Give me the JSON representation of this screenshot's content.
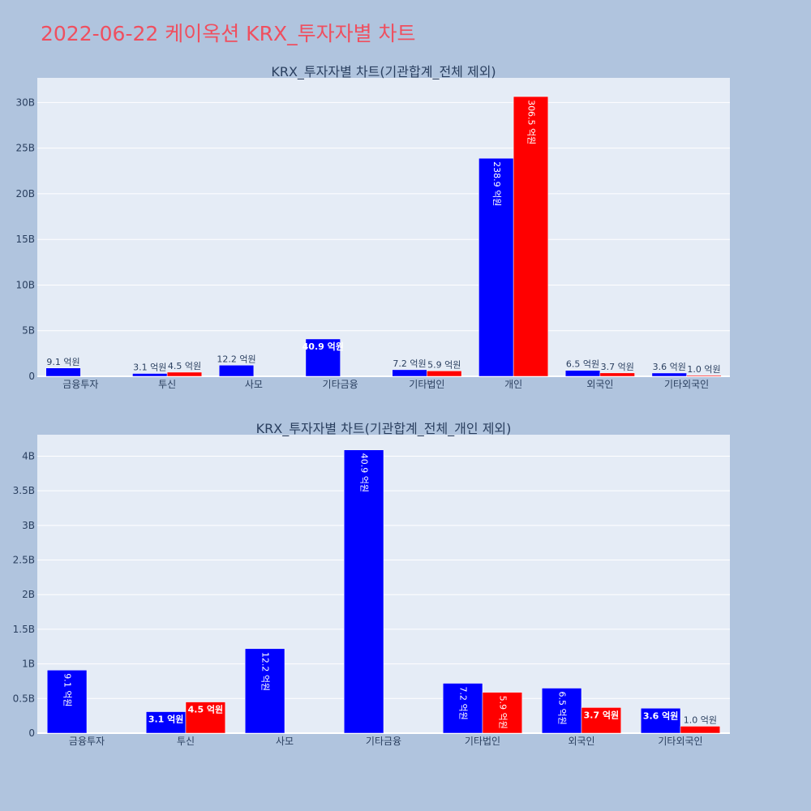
{
  "page": {
    "title": "2022-06-22 케이옥션 KRX_투자자별 차트"
  },
  "colors": {
    "background": "#b0c4de",
    "plot_bg": "#e5ecf6",
    "buy": "#0000ff",
    "sell": "#ff0000",
    "title": "#ef4f5f"
  },
  "chart_data": [
    {
      "type": "bar",
      "title": "KRX_투자자별 차트(기관합계_전체 제외)",
      "categories": [
        "금융투자",
        "투신",
        "사모",
        "기타금융",
        "기타법인",
        "개인",
        "외국인",
        "기타외국인"
      ],
      "series": [
        {
          "color": "#0000ff",
          "values": [
            910000000,
            310000000,
            1220000000,
            4090000000,
            720000000,
            23890000000,
            650000000,
            360000000
          ],
          "labels": [
            "9.1 억원",
            "3.1 억원",
            "12.2 억원",
            "40.9 억원",
            "7.2 억원",
            "238.9 억원",
            "6.5 억원",
            "3.6 억원"
          ]
        },
        {
          "color": "#ff0000",
          "values": [
            0,
            450000000,
            0,
            0,
            590000000,
            30650000000,
            370000000,
            100000000
          ],
          "labels": [
            "",
            "4.5 억원",
            "",
            "",
            "5.9 억원",
            "306.5 억원",
            "3.7 억원",
            "1.0 억원"
          ]
        }
      ],
      "ylim": [
        0,
        32700000000
      ],
      "yticks": [
        0,
        5000000000,
        10000000000,
        15000000000,
        20000000000,
        25000000000,
        30000000000
      ],
      "ytick_labels": [
        "0",
        "5B",
        "10B",
        "15B",
        "20B",
        "25B",
        "30B"
      ],
      "grid": true
    },
    {
      "type": "bar",
      "title": "KRX_투자자별 차트(기관합계_전체_개인 제외)",
      "categories": [
        "금융투자",
        "투신",
        "사모",
        "기타금융",
        "기타법인",
        "외국인",
        "기타외국인"
      ],
      "series": [
        {
          "color": "#0000ff",
          "values": [
            910000000,
            310000000,
            1220000000,
            4090000000,
            720000000,
            650000000,
            360000000
          ],
          "labels": [
            "9.1 억원",
            "3.1 억원",
            "12.2 억원",
            "40.9 억원",
            "7.2 억원",
            "6.5 억원",
            "3.6 억원"
          ]
        },
        {
          "color": "#ff0000",
          "values": [
            0,
            450000000,
            0,
            0,
            590000000,
            370000000,
            100000000
          ],
          "labels": [
            "",
            "4.5 억원",
            "",
            "",
            "5.9 억원",
            "3.7 억원",
            "1.0 억원"
          ]
        }
      ],
      "ylim": [
        0,
        4310000000
      ],
      "yticks": [
        0,
        500000000,
        1000000000,
        1500000000,
        2000000000,
        2500000000,
        3000000000,
        3500000000,
        4000000000
      ],
      "ytick_labels": [
        "0",
        "0.5B",
        "1B",
        "1.5B",
        "2B",
        "2.5B",
        "3B",
        "3.5B",
        "4B"
      ],
      "grid": true
    }
  ]
}
